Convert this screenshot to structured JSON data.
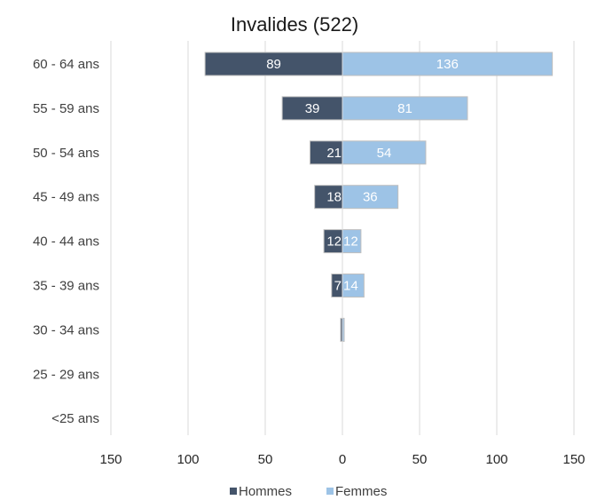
{
  "colors": {
    "hommes": "#44546a",
    "femmes": "#9dc3e6",
    "bar_outline": "#bfbfbf",
    "grid": "#d9d9d9"
  },
  "chart_data": {
    "type": "bar",
    "orientation": "horizontal",
    "layout": "population-pyramid",
    "title": "Invalides (522)",
    "categories": [
      "60 - 64 ans",
      "55 - 59 ans",
      "50 - 54 ans",
      "45 - 49 ans",
      "40 - 44 ans",
      "35 - 39 ans",
      "30 - 34 ans",
      "25 - 29 ans",
      "<25 ans"
    ],
    "series": [
      {
        "name": "Hommes",
        "side": "left",
        "values": [
          89,
          39,
          21,
          18,
          12,
          7,
          1,
          0,
          0
        ],
        "labels": [
          "89",
          "39",
          "21",
          "18",
          "12",
          "7",
          "",
          "",
          ""
        ]
      },
      {
        "name": "Femmes",
        "side": "right",
        "values": [
          136,
          81,
          54,
          36,
          12,
          14,
          1,
          0,
          0
        ],
        "labels": [
          "136",
          "81",
          "54",
          "36",
          "12",
          "14",
          "",
          "",
          ""
        ]
      }
    ],
    "x_ticks": [
      {
        "value": -150,
        "label": "150"
      },
      {
        "value": -100,
        "label": "100"
      },
      {
        "value": -50,
        "label": "50"
      },
      {
        "value": 0,
        "label": "0"
      },
      {
        "value": 50,
        "label": "50"
      },
      {
        "value": 100,
        "label": "100"
      },
      {
        "value": 150,
        "label": "150"
      }
    ],
    "xlim": [
      -150,
      150
    ],
    "grid": "vertical",
    "legend_position": "bottom"
  }
}
